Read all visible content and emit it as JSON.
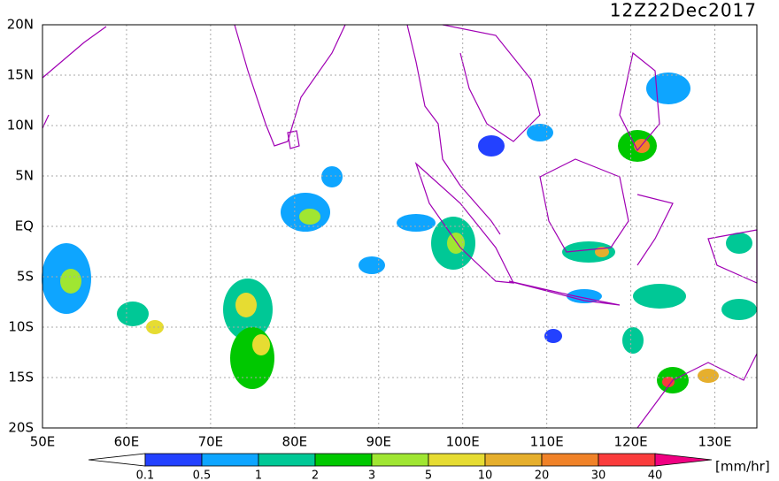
{
  "header": {
    "title": "12Z22Dec2017"
  },
  "map": {
    "lon_labels": [
      "50E",
      "60E",
      "70E",
      "80E",
      "90E",
      "100E",
      "110E",
      "120E",
      "130E"
    ],
    "lat_labels": [
      "20N",
      "15N",
      "10N",
      "5N",
      "EQ",
      "5S",
      "10S",
      "15S",
      "20S"
    ]
  },
  "colorbar": {
    "levels": [
      0.1,
      0.5,
      1,
      2,
      3,
      5,
      10,
      20,
      30,
      40
    ],
    "colors": [
      "#ffffff",
      "#2341ff",
      "#0ea5ff",
      "#00c896",
      "#00c800",
      "#a0e632",
      "#e6dc32",
      "#e6af2d",
      "#f08228",
      "#fa3c3c",
      "#f00082"
    ],
    "unit": "[mm/hr]"
  }
}
